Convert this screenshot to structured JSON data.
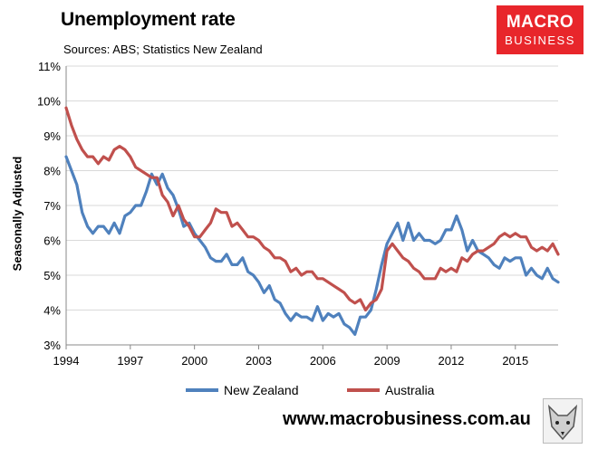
{
  "header": {
    "title": "Unemployment rate",
    "subtitle": "Sources: ABS; Statistics New Zealand"
  },
  "logo": {
    "line1": "MACRO",
    "line2": "BUSINESS",
    "color": "#e8262b"
  },
  "footer": {
    "website": "www.macrobusiness.com.au"
  },
  "chart_data": {
    "type": "line",
    "title": "Unemployment rate",
    "ylabel": "Seasonally Adjusted",
    "xlabel": "",
    "xlim": [
      1994,
      2017
    ],
    "ylim": [
      3,
      11
    ],
    "x_ticks": [
      "1994",
      "1997",
      "2000",
      "2003",
      "2006",
      "2009",
      "2012",
      "2015"
    ],
    "y_ticks": [
      "3%",
      "4%",
      "5%",
      "6%",
      "7%",
      "8%",
      "9%",
      "10%",
      "11%"
    ],
    "grid": true,
    "legend_position": "bottom",
    "series": [
      {
        "name": "New Zealand",
        "color": "#4f81bd",
        "x": [
          1994.0,
          1994.25,
          1994.5,
          1994.75,
          1995.0,
          1995.25,
          1995.5,
          1995.75,
          1996.0,
          1996.25,
          1996.5,
          1996.75,
          1997.0,
          1997.25,
          1997.5,
          1997.75,
          1998.0,
          1998.25,
          1998.5,
          1998.75,
          1999.0,
          1999.25,
          1999.5,
          1999.75,
          2000.0,
          2000.25,
          2000.5,
          2000.75,
          2001.0,
          2001.25,
          2001.5,
          2001.75,
          2002.0,
          2002.25,
          2002.5,
          2002.75,
          2003.0,
          2003.25,
          2003.5,
          2003.75,
          2004.0,
          2004.25,
          2004.5,
          2004.75,
          2005.0,
          2005.25,
          2005.5,
          2005.75,
          2006.0,
          2006.25,
          2006.5,
          2006.75,
          2007.0,
          2007.25,
          2007.5,
          2007.75,
          2008.0,
          2008.25,
          2008.5,
          2008.75,
          2009.0,
          2009.25,
          2009.5,
          2009.75,
          2010.0,
          2010.25,
          2010.5,
          2010.75,
          2011.0,
          2011.25,
          2011.5,
          2011.75,
          2012.0,
          2012.25,
          2012.5,
          2012.75,
          2013.0,
          2013.25,
          2013.5,
          2013.75,
          2014.0,
          2014.25,
          2014.5,
          2014.75,
          2015.0,
          2015.25,
          2015.5,
          2015.75,
          2016.0,
          2016.25,
          2016.5,
          2016.75,
          2017.0
        ],
        "values": [
          8.4,
          8.0,
          7.6,
          6.8,
          6.4,
          6.2,
          6.4,
          6.4,
          6.2,
          6.5,
          6.2,
          6.7,
          6.8,
          7.0,
          7.0,
          7.4,
          7.9,
          7.6,
          7.9,
          7.5,
          7.3,
          6.9,
          6.4,
          6.5,
          6.2,
          6.0,
          5.8,
          5.5,
          5.4,
          5.4,
          5.6,
          5.3,
          5.3,
          5.5,
          5.1,
          5.0,
          4.8,
          4.5,
          4.7,
          4.3,
          4.2,
          3.9,
          3.7,
          3.9,
          3.8,
          3.8,
          3.7,
          4.1,
          3.7,
          3.9,
          3.8,
          3.9,
          3.6,
          3.5,
          3.3,
          3.8,
          3.8,
          4.0,
          4.6,
          5.3,
          5.9,
          6.2,
          6.5,
          6.0,
          6.5,
          6.0,
          6.2,
          6.0,
          6.0,
          5.9,
          6.0,
          6.3,
          6.3,
          6.7,
          6.3,
          5.7,
          6.0,
          5.7,
          5.6,
          5.5,
          5.3,
          5.2,
          5.5,
          5.4,
          5.5,
          5.5,
          5.0,
          5.2,
          5.0,
          4.9,
          5.2,
          4.9,
          4.8
        ]
      },
      {
        "name": "Australia",
        "color": "#c0504d",
        "x": [
          1994.0,
          1994.25,
          1994.5,
          1994.75,
          1995.0,
          1995.25,
          1995.5,
          1995.75,
          1996.0,
          1996.25,
          1996.5,
          1996.75,
          1997.0,
          1997.25,
          1997.5,
          1997.75,
          1998.0,
          1998.25,
          1998.5,
          1998.75,
          1999.0,
          1999.25,
          1999.5,
          1999.75,
          2000.0,
          2000.25,
          2000.5,
          2000.75,
          2001.0,
          2001.25,
          2001.5,
          2001.75,
          2002.0,
          2002.25,
          2002.5,
          2002.75,
          2003.0,
          2003.25,
          2003.5,
          2003.75,
          2004.0,
          2004.25,
          2004.5,
          2004.75,
          2005.0,
          2005.25,
          2005.5,
          2005.75,
          2006.0,
          2006.25,
          2006.5,
          2006.75,
          2007.0,
          2007.25,
          2007.5,
          2007.75,
          2008.0,
          2008.25,
          2008.5,
          2008.75,
          2009.0,
          2009.25,
          2009.5,
          2009.75,
          2010.0,
          2010.25,
          2010.5,
          2010.75,
          2011.0,
          2011.25,
          2011.5,
          2011.75,
          2012.0,
          2012.25,
          2012.5,
          2012.75,
          2013.0,
          2013.25,
          2013.5,
          2013.75,
          2014.0,
          2014.25,
          2014.5,
          2014.75,
          2015.0,
          2015.25,
          2015.5,
          2015.75,
          2016.0,
          2016.25,
          2016.5,
          2016.75,
          2017.0
        ],
        "values": [
          9.8,
          9.3,
          8.9,
          8.6,
          8.4,
          8.4,
          8.2,
          8.4,
          8.3,
          8.6,
          8.7,
          8.6,
          8.4,
          8.1,
          8.0,
          7.9,
          7.8,
          7.8,
          7.3,
          7.1,
          6.7,
          7.0,
          6.6,
          6.4,
          6.1,
          6.1,
          6.3,
          6.5,
          6.9,
          6.8,
          6.8,
          6.4,
          6.5,
          6.3,
          6.1,
          6.1,
          6.0,
          5.8,
          5.7,
          5.5,
          5.5,
          5.4,
          5.1,
          5.2,
          5.0,
          5.1,
          5.1,
          4.9,
          4.9,
          4.8,
          4.7,
          4.6,
          4.5,
          4.3,
          4.2,
          4.3,
          4.0,
          4.2,
          4.3,
          4.6,
          5.7,
          5.9,
          5.7,
          5.5,
          5.4,
          5.2,
          5.1,
          4.9,
          4.9,
          4.9,
          5.2,
          5.1,
          5.2,
          5.1,
          5.5,
          5.4,
          5.6,
          5.7,
          5.7,
          5.8,
          5.9,
          6.1,
          6.2,
          6.1,
          6.2,
          6.1,
          6.1,
          5.8,
          5.7,
          5.8,
          5.7,
          5.9,
          5.6
        ]
      }
    ]
  }
}
